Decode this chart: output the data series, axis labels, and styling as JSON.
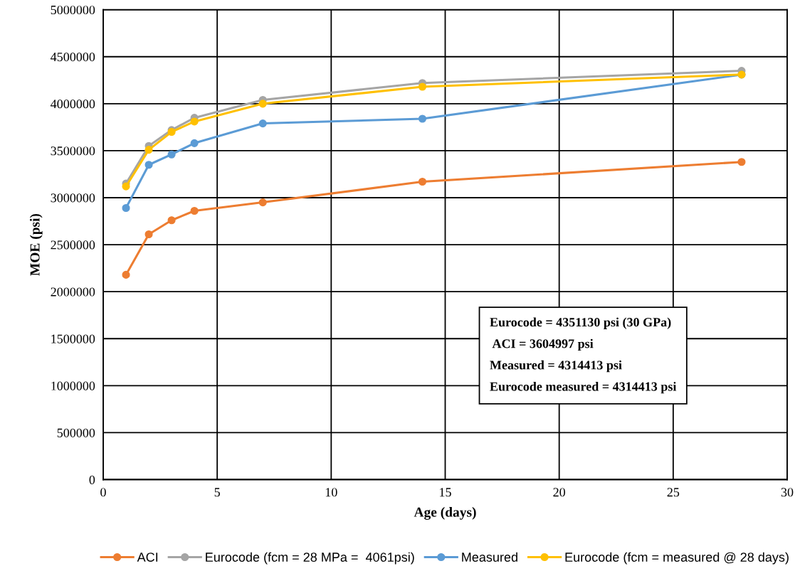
{
  "chart_data": {
    "type": "line",
    "xlabel": "Age (days)",
    "ylabel": "MOE (psi)",
    "x": [
      1,
      2,
      3,
      4,
      7,
      14,
      28
    ],
    "series": [
      {
        "name": "ACI",
        "color": "#ed7d31",
        "values": [
          2180000,
          2610000,
          2760000,
          2860000,
          2950000,
          3170000,
          3380000
        ]
      },
      {
        "name": "Eurocode (fcm = 28 MPa =  4061psi)",
        "color": "#a5a5a5",
        "values": [
          3150000,
          3550000,
          3720000,
          3850000,
          4040000,
          4220000,
          4350000
        ]
      },
      {
        "name": "Measured",
        "color": "#5b9bd5",
        "values": [
          2890000,
          3350000,
          3460000,
          3580000,
          3790000,
          3840000,
          4310000
        ]
      },
      {
        "name": "Eurocode (fcm = measured @ 28 days)",
        "color": "#ffc000",
        "values": [
          3120000,
          3510000,
          3700000,
          3810000,
          4000000,
          4180000,
          4310000
        ]
      }
    ],
    "xlim": [
      0,
      30
    ],
    "xticks": [
      0,
      5,
      10,
      15,
      20,
      25,
      30
    ],
    "ylim": [
      0,
      5000000
    ],
    "yticks": [
      0,
      500000,
      1000000,
      1500000,
      2000000,
      2500000,
      3000000,
      3500000,
      4000000,
      4500000,
      5000000
    ],
    "grid": true,
    "legend": "bottom",
    "marker": "circle",
    "line_style": "solid",
    "annotations": [
      "Eurocode = 4351130 psi (30 GPa)",
      " ACI = 3604997 psi",
      "Measured = 4314413 psi",
      "Eurocode measured = 4314413 psi"
    ]
  }
}
